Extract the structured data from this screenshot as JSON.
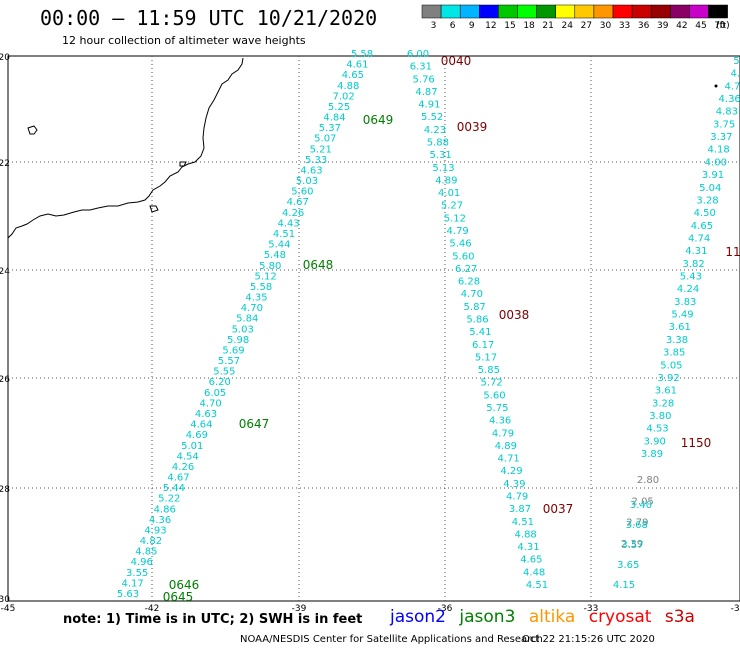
{
  "header": {
    "title": "00:00 – 11:59 UTC 10/21/2020",
    "subtitle": "12 hour collection of altimeter wave heights"
  },
  "colorbar": {
    "labels": [
      "3",
      "6",
      "9",
      "12",
      "15",
      "18",
      "21",
      "24",
      "27",
      "30",
      "33",
      "36",
      "39",
      "42",
      "45",
      "70"
    ],
    "unit": "(ft)",
    "colors": [
      "#808080",
      "#00e5e5",
      "#00b4ff",
      "#0000ff",
      "#00c800",
      "#00ff00",
      "#009600",
      "#ffff00",
      "#ffc800",
      "#ff9600",
      "#ff0000",
      "#c80000",
      "#960000",
      "#8b0064",
      "#c800c8",
      "#000000"
    ]
  },
  "axes": {
    "lat_labels": [
      "-20",
      "-22",
      "-24",
      "-26",
      "-28",
      "-30"
    ],
    "lon_labels": [
      "-45",
      "-42",
      "-39",
      "-36",
      "-33",
      "-30"
    ]
  },
  "tracks": [
    {
      "name": "track-a",
      "color": "#00cccc",
      "values": [
        "5.58",
        "4.61",
        "4.65",
        "4.88",
        "7.02",
        "5.25",
        "4.84",
        "5.37",
        "5.07",
        "5.21",
        "5.33",
        "4.63",
        "5.03",
        "5.60",
        "4.67",
        "4.26",
        "4.43",
        "4.51",
        "5.44",
        "5.48",
        "5.80",
        "5.12",
        "5.58",
        "4.35",
        "4.70",
        "5.84",
        "5.03",
        "5.98",
        "5.69",
        "5.57",
        "5.55",
        "6.20",
        "6.05",
        "4.70",
        "4.63",
        "4.64",
        "4.69",
        "5.01",
        "4.54",
        "4.26",
        "4.67",
        "5.44",
        "5.22",
        "4.86",
        "4.36",
        "4.93",
        "4.82",
        "4.85",
        "4.96",
        "3.55",
        "4.17",
        "5.63"
      ]
    },
    {
      "name": "track-b",
      "color": "#00cccc",
      "values": [
        "6.00",
        "6.31",
        "5.76",
        "4.87",
        "4.91",
        "5.52",
        "4.23",
        "5.88",
        "5.31",
        "5.13",
        "4.89",
        "4.01",
        "5.27",
        "5.12",
        "4.79",
        "5.46",
        "5.60",
        "6.27",
        "6.28",
        "4.70",
        "5.87",
        "5.86",
        "5.41",
        "6.17",
        "5.17",
        "5.85",
        "5.72",
        "5.60",
        "5.75",
        "4.36",
        "4.79",
        "4.89",
        "4.71",
        "4.29",
        "4.39",
        "4.79",
        "3.87",
        "4.51",
        "4.88",
        "4.31",
        "4.65",
        "4.48",
        "4.51"
      ]
    },
    {
      "name": "track-c",
      "color": "#00cccc",
      "values": [
        "5.",
        "4.",
        "4.7",
        "4.36",
        "4.83",
        "3.75",
        "3.37",
        "4.18",
        "4.00",
        "3.91",
        "5.04",
        "3.28",
        "4.50",
        "4.65",
        "4.74",
        "4.31",
        "3.82",
        "5.43",
        "4.24",
        "3.83",
        "5.49",
        "3.61",
        "3.38",
        "3.85",
        "5.05",
        "3.92",
        "3.61",
        "3.28",
        "3.80",
        "4.53",
        "3.90",
        "3.89"
      ]
    },
    {
      "name": "track-c-low",
      "color": "#808080",
      "values": [
        "2.80",
        "2.05",
        "2.79",
        "2.39"
      ]
    },
    {
      "name": "track-c-tail",
      "color": "#00cccc",
      "values": [
        "3.40",
        "3.68",
        "3.57",
        "3.65",
        "4.15"
      ]
    }
  ],
  "time_labels": [
    {
      "text": "0649",
      "color": "#008000"
    },
    {
      "text": "0648",
      "color": "#008000"
    },
    {
      "text": "0647",
      "color": "#008000"
    },
    {
      "text": "0646",
      "color": "#008000"
    },
    {
      "text": "0645",
      "color": "#008000"
    },
    {
      "text": "0040",
      "color": "#800000"
    },
    {
      "text": "0039",
      "color": "#800000"
    },
    {
      "text": "0038",
      "color": "#800000"
    },
    {
      "text": "0037",
      "color": "#800000"
    },
    {
      "text": "1150",
      "color": "#800000"
    },
    {
      "text": "11",
      "color": "#800000"
    }
  ],
  "footer": {
    "note": "note:  1) Time is in UTC;  2) SWH is in feet",
    "satellites": [
      {
        "name": "jason2",
        "color": "#0000ff"
      },
      {
        "name": "jason3",
        "color": "#008000"
      },
      {
        "name": "altika",
        "color": "#ff9600"
      },
      {
        "name": "cryosat",
        "color": "#ff0000"
      },
      {
        "name": "s3a",
        "color": "#cc0000"
      }
    ],
    "credit": "NOAA/NESDIS Center for Satellite Applications and Research",
    "timestamp": "Oct 22 21:15:26 UTC 2020"
  }
}
